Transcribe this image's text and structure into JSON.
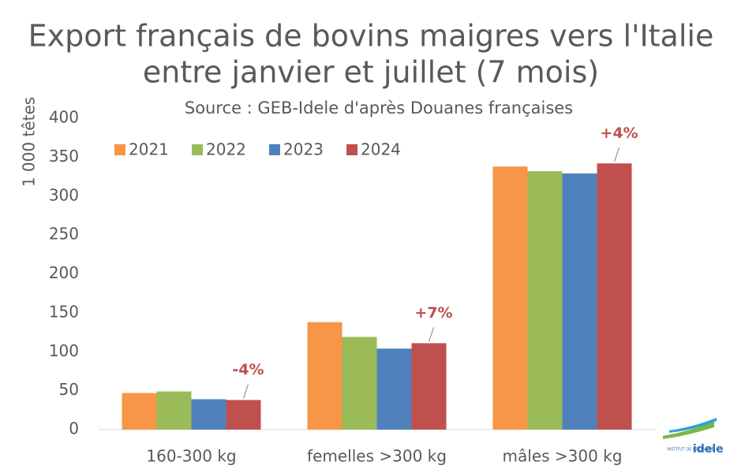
{
  "chart_data": {
    "type": "bar",
    "title": [
      "Export français de bovins maigres vers l'Italie",
      "entre janvier et juillet (7 mois)"
    ],
    "subtitle": "Source : GEB-Idele d'après Douanes françaises",
    "y_label": "1 000 têtes",
    "categories": [
      "160-300 kg",
      "femelles >300 kg",
      "mâles >300 kg"
    ],
    "series": [
      {
        "name": "2021",
        "color": "#f79646",
        "values": [
          47,
          138,
          338
        ]
      },
      {
        "name": "2022",
        "color": "#9bbb59",
        "values": [
          49,
          119,
          332
        ]
      },
      {
        "name": "2023",
        "color": "#4f81bd",
        "values": [
          39,
          104,
          329
        ]
      },
      {
        "name": "2024",
        "color": "#c0504d",
        "values": [
          38,
          111,
          342
        ]
      }
    ],
    "annotations": [
      "-4%",
      "+7%",
      "+4%"
    ],
    "annotation_color": "#c0504d",
    "ylim": [
      0,
      400
    ],
    "yticks": [
      0,
      50,
      100,
      150,
      200,
      250,
      300,
      350,
      400
    ],
    "grid": false,
    "legend": "top-left",
    "logo": {
      "small": "INSTITUT DE L'ELEVAGE",
      "brand": "idele"
    }
  }
}
